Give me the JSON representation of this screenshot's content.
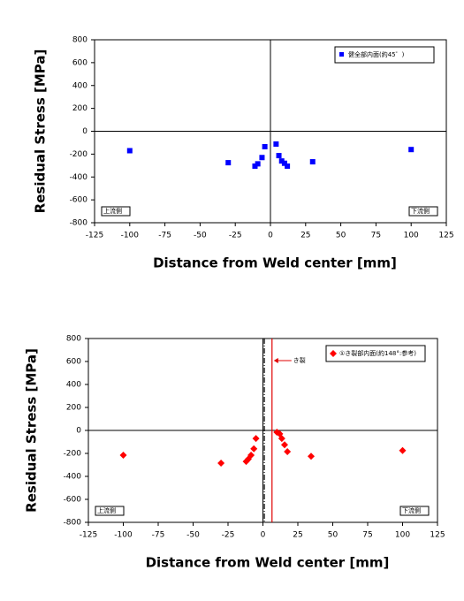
{
  "chart_data": [
    {
      "type": "scatter",
      "x_label": "Distance from Weld center [mm]",
      "y_label": "Residual Stress [MPa]",
      "xlim": [
        -125,
        125
      ],
      "ylim": [
        -800,
        800
      ],
      "xticks": [
        -125,
        -100,
        -75,
        -50,
        -25,
        0,
        25,
        50,
        75,
        100,
        125
      ],
      "yticks": [
        -800,
        -600,
        -400,
        -200,
        0,
        200,
        400,
        600,
        800
      ],
      "legend": "upper right",
      "series": [
        {
          "name": "健全部内面(約45゜)",
          "color": "#0000ff",
          "marker": "square",
          "x": [
            -100,
            -30,
            -11,
            -9,
            -6,
            -4,
            4,
            6,
            8,
            10,
            12,
            30,
            100
          ],
          "values": [
            -170,
            -275,
            -305,
            -285,
            -230,
            -135,
            -112,
            -213,
            -260,
            -280,
            -305,
            -267,
            -160
          ]
        }
      ],
      "annotations": [
        "上流側",
        "下流側"
      ]
    },
    {
      "type": "scatter",
      "x_label": "Distance from Weld center [mm]",
      "y_label": "Residual Stress [MPa]",
      "xlim": [
        -125,
        125
      ],
      "ylim": [
        -800,
        800
      ],
      "xticks": [
        -125,
        -100,
        -75,
        -50,
        -25,
        0,
        25,
        50,
        75,
        100,
        125
      ],
      "yticks": [
        -800,
        -600,
        -400,
        -200,
        0,
        200,
        400,
        600,
        800
      ],
      "legend": "upper right",
      "series": [
        {
          "name": "①き裂部内面(約148°:参考)",
          "color": "#ff0000",
          "marker": "diamond",
          "x": [
            -100,
            -30,
            -12,
            -10.5,
            -8.5,
            -6.5,
            -5,
            10,
            12,
            13.5,
            15.5,
            17.5,
            34.5,
            100
          ],
          "values": [
            -215,
            -285,
            -270,
            -250,
            -215,
            -160,
            -70,
            -15,
            -30,
            -70,
            -125,
            -185,
            -225,
            -175
          ]
        }
      ],
      "vlines": [
        {
          "x": 1,
          "color": "#000000",
          "style": "dashdot"
        },
        {
          "x": 6.5,
          "color": "#e00000",
          "style": "solid"
        }
      ],
      "crack_label": "き裂",
      "annotations": [
        "上流側",
        "下流側"
      ]
    }
  ]
}
